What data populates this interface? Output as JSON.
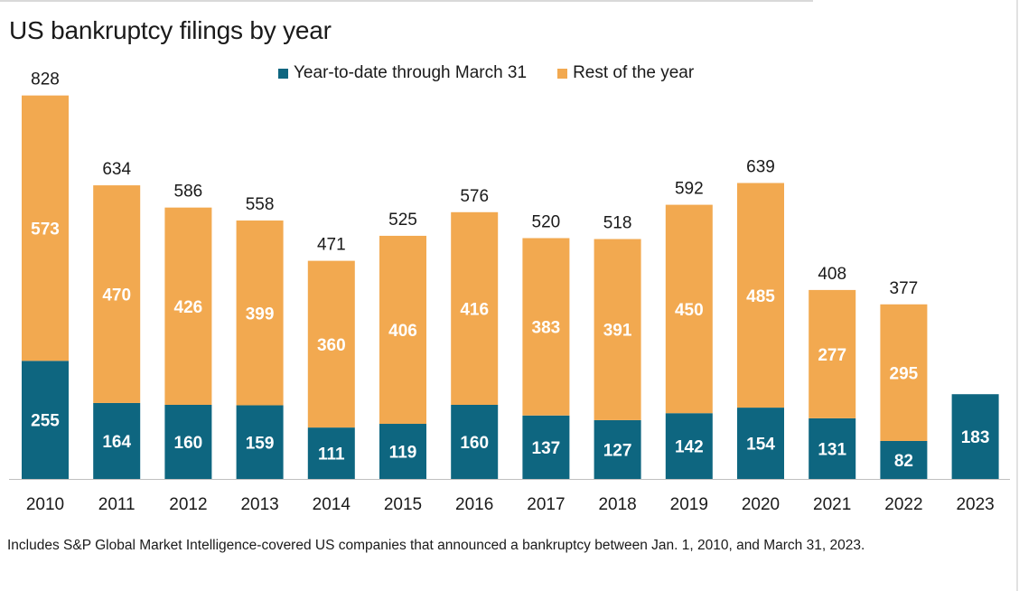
{
  "title": "US bankruptcy filings by year",
  "legend": [
    {
      "label": "Year-to-date through March 31",
      "color": "#0e6680"
    },
    {
      "label": "Rest of the year",
      "color": "#f2a950"
    }
  ],
  "footnote": "Includes S&P Global Market Intelligence-covered US companies that announced a bankruptcy between Jan. 1, 2010, and March 31, 2023.",
  "chart_data": {
    "type": "bar",
    "stacked": true,
    "categories": [
      "2010",
      "2011",
      "2012",
      "2013",
      "2014",
      "2015",
      "2016",
      "2017",
      "2018",
      "2019",
      "2020",
      "2021",
      "2022",
      "2023"
    ],
    "series": [
      {
        "name": "Year-to-date through March 31",
        "values": [
          255,
          164,
          160,
          159,
          111,
          119,
          160,
          137,
          127,
          142,
          154,
          131,
          82,
          183
        ]
      },
      {
        "name": "Rest of the year",
        "values": [
          573,
          470,
          426,
          399,
          360,
          406,
          416,
          383,
          391,
          450,
          485,
          277,
          295,
          null
        ]
      }
    ],
    "totals": [
      828,
      634,
      586,
      558,
      471,
      525,
      576,
      520,
      518,
      592,
      639,
      408,
      377,
      null
    ],
    "grid": false,
    "legend_position": "top"
  }
}
